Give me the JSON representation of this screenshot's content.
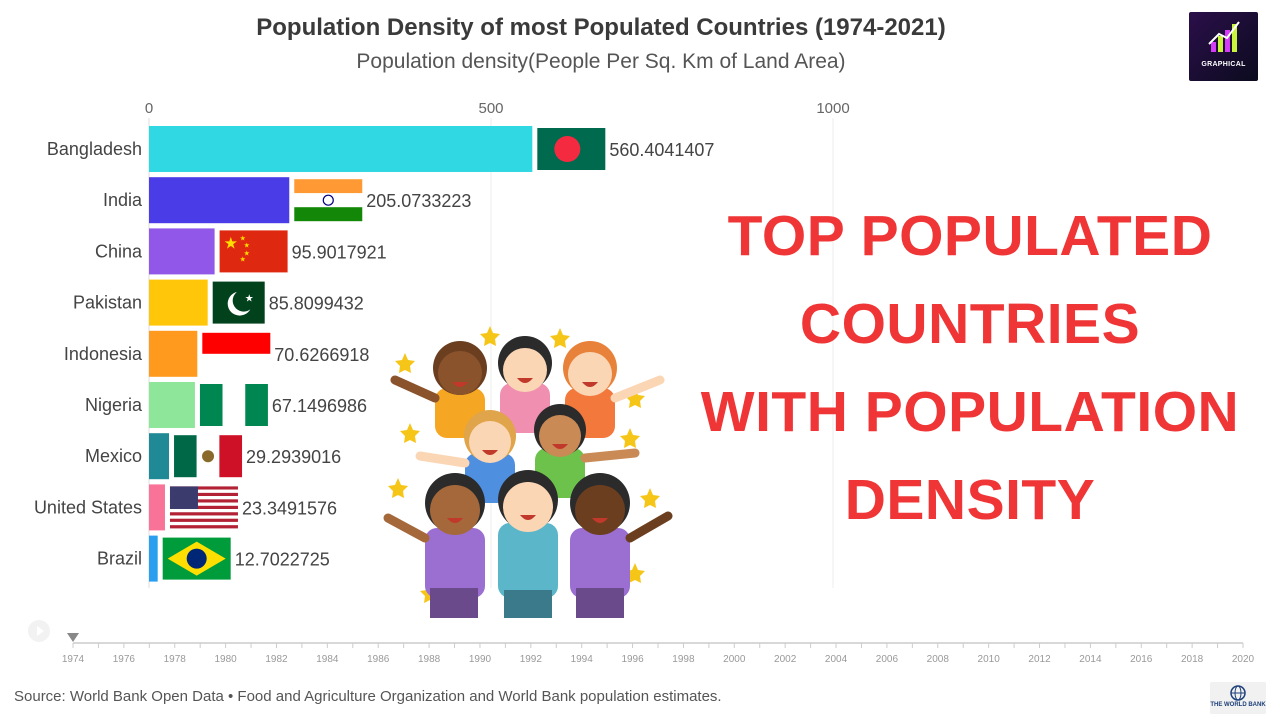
{
  "header": {
    "title": "Population Density of most Populated Countries (1974-2021)",
    "subtitle": "Population density(People Per Sq. Km of Land Area)"
  },
  "logo": {
    "text": "GRAPHICAL"
  },
  "headline": {
    "lines": [
      "TOP POPULATED",
      "COUNTRIES",
      "WITH POPULATION",
      "DENSITY"
    ],
    "color": "#ef3535"
  },
  "footer": {
    "source": "Source: World Bank Open Data • Food and Agriculture Organization and World Bank population estimates.",
    "wb_logo_text": "THE WORLD BANK"
  },
  "chart_data": {
    "type": "bar",
    "orientation": "horizontal",
    "categories": [
      "Bangladesh",
      "India",
      "China",
      "Pakistan",
      "Indonesia",
      "Nigeria",
      "Mexico",
      "United States",
      "Brazil"
    ],
    "values": [
      560.4041407,
      205.0733223,
      95.9017921,
      85.8099432,
      70.6266918,
      67.1496986,
      29.2939016,
      23.3491576,
      12.7022725
    ],
    "value_labels": [
      "560.4041407",
      "205.0733223",
      "95.9017921",
      "85.8099432",
      "70.6266918",
      "67.1496986",
      "29.2939016",
      "23.3491576",
      "12.7022725"
    ],
    "bar_colors": [
      "#2fd8e3",
      "#4a3ce6",
      "#9157e8",
      "#ffc60a",
      "#ff9a1f",
      "#8ee69a",
      "#1f8a96",
      "#f97399",
      "#2a9ff0"
    ],
    "x_ticks": [
      0,
      500,
      1000
    ],
    "xlim": [
      0,
      1000
    ],
    "grid": true,
    "timeline": {
      "years": [
        "1974",
        "1976",
        "1978",
        "1980",
        "1982",
        "1984",
        "1986",
        "1988",
        "1990",
        "1992",
        "1994",
        "1996",
        "1998",
        "2000",
        "2002",
        "2004",
        "2006",
        "2008",
        "2010",
        "2012",
        "2014",
        "2016",
        "2018",
        "2020"
      ],
      "current": "1974"
    }
  }
}
